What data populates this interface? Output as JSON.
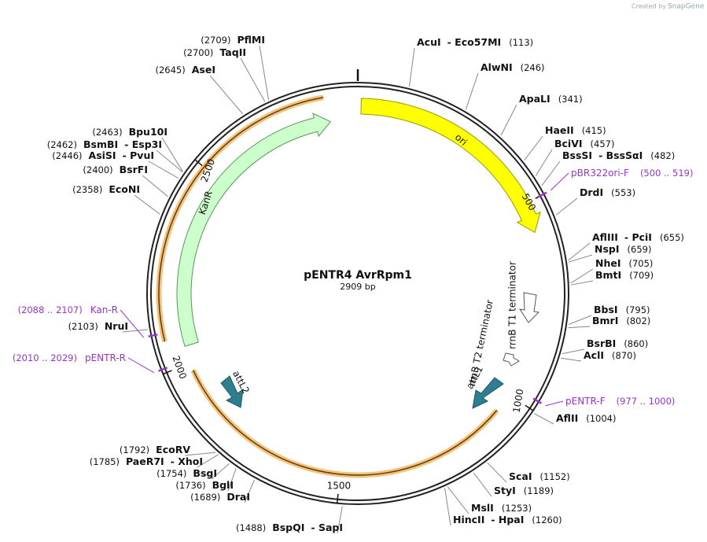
{
  "header": {
    "credit": "Created by",
    "brand": "SnapGene"
  },
  "map": {
    "name": "pENTR4 AvrRpm1",
    "size": "2909 bp",
    "ticks": [
      "500",
      "1000",
      "1500",
      "2000",
      "2500"
    ]
  },
  "features": [
    {
      "label": "ori"
    },
    {
      "label": "KanR"
    },
    {
      "label": "rrnB T1 terminator"
    },
    {
      "label": "rrnB T2 terminator"
    },
    {
      "label": "attL1"
    },
    {
      "label": "attL2"
    }
  ],
  "sites": [
    {
      "names": [
        "AcuI",
        "- Eco57MI"
      ],
      "position": "(113)"
    },
    {
      "names": [
        "AlwNI"
      ],
      "position": "(246)"
    },
    {
      "names": [
        "ApaLI"
      ],
      "position": "(341)"
    },
    {
      "names": [
        "HaeII"
      ],
      "position": "(415)"
    },
    {
      "names": [
        "BciVI"
      ],
      "position": "(457)"
    },
    {
      "names": [
        "BssSI",
        "- BssSαI"
      ],
      "position": "(482)"
    },
    {
      "names": [
        "DrdI"
      ],
      "position": "(553)"
    },
    {
      "names": [
        "AflIII",
        "- PciI"
      ],
      "position": "(655)"
    },
    {
      "names": [
        "NspI"
      ],
      "position": "(659)"
    },
    {
      "names": [
        "NheI"
      ],
      "position": "(705)"
    },
    {
      "names": [
        "BmtI"
      ],
      "position": "(709)"
    },
    {
      "names": [
        "BbsI"
      ],
      "position": "(795)"
    },
    {
      "names": [
        "BmrI"
      ],
      "position": "(802)"
    },
    {
      "names": [
        "BsrBI"
      ],
      "position": "(860)"
    },
    {
      "names": [
        "AclI"
      ],
      "position": "(870)"
    },
    {
      "names": [
        "AflII"
      ],
      "position": "(1004)"
    },
    {
      "names": [
        "ScaI"
      ],
      "position": "(1152)"
    },
    {
      "names": [
        "StyI"
      ],
      "position": "(1189)"
    },
    {
      "names": [
        "MslI"
      ],
      "position": "(1253)"
    },
    {
      "names": [
        "HincII",
        "- HpaI"
      ],
      "position": "(1260)"
    },
    {
      "names": [
        "BspQI",
        "- SapI"
      ],
      "position": "(1488)"
    },
    {
      "names": [
        "DraI"
      ],
      "position": "(1689)"
    },
    {
      "names": [
        "BglI"
      ],
      "position": "(1736)"
    },
    {
      "names": [
        "BsgI"
      ],
      "position": "(1754)"
    },
    {
      "names": [
        "PaeR7I",
        "- XhoI"
      ],
      "position": "(1785)"
    },
    {
      "names": [
        "EcoRV"
      ],
      "position": "(1792)"
    },
    {
      "names": [
        "NruI"
      ],
      "position": "(2103)"
    },
    {
      "names": [
        "EcoNI"
      ],
      "position": "(2358)"
    },
    {
      "names": [
        "BsrFI"
      ],
      "position": "(2400)"
    },
    {
      "names": [
        "AsiSI",
        "- PvuI"
      ],
      "position": "(2446)"
    },
    {
      "names": [
        "BsmBI",
        "- Esp3I"
      ],
      "position": "(2462)"
    },
    {
      "names": [
        "Bpu10I"
      ],
      "position": "(2463)"
    },
    {
      "names": [
        "AseI"
      ],
      "position": "(2645)"
    },
    {
      "names": [
        "TaqII"
      ],
      "position": "(2700)"
    },
    {
      "names": [
        "PflMI"
      ],
      "position": "(2709)"
    }
  ],
  "primers": [
    {
      "name": "pBR322ori-F",
      "range": "(500 .. 519)"
    },
    {
      "name": "pENTR-F",
      "range": "(977 .. 1000)"
    },
    {
      "name": "Kan-R",
      "range": "(2088 .. 2107)"
    },
    {
      "name": "pENTR-R",
      "range": "(2010 .. 2029)"
    }
  ]
}
